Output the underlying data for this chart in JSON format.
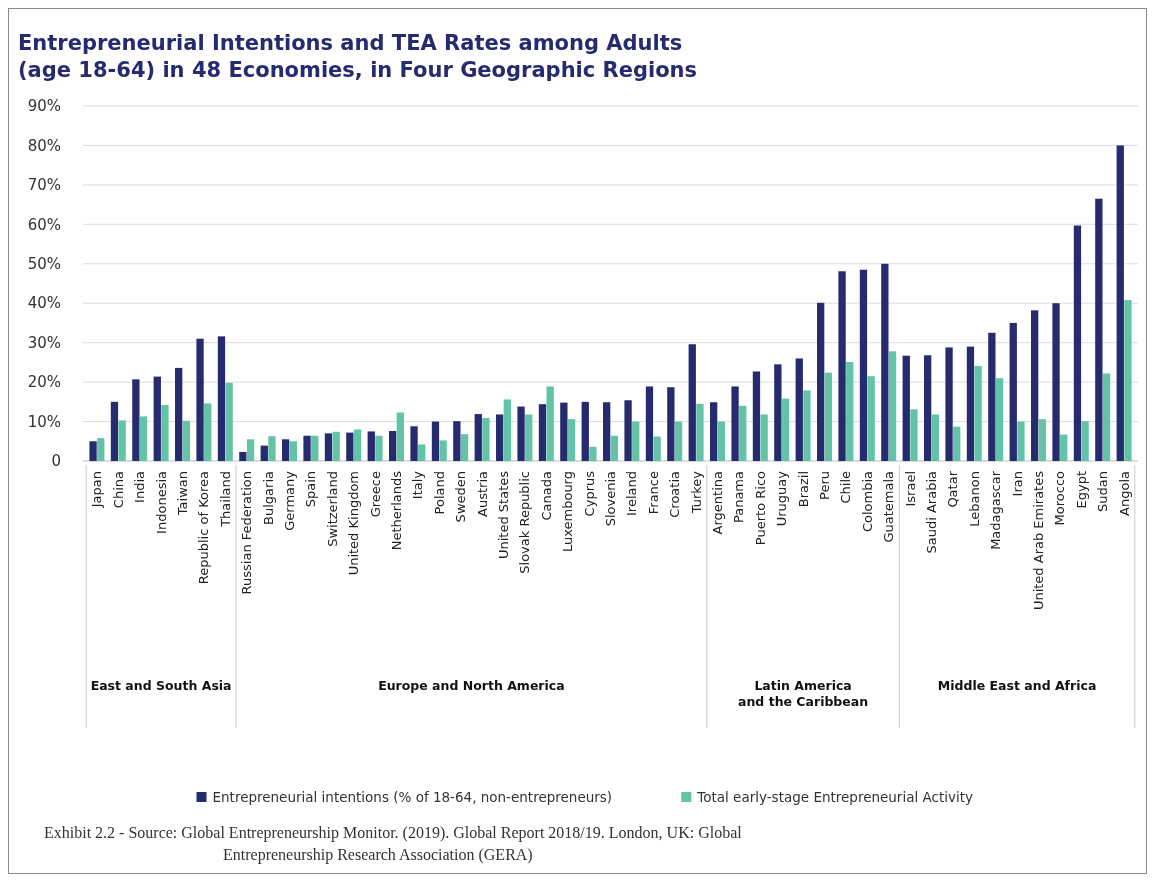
{
  "chart_data": {
    "type": "bar",
    "title": "Entrepreneurial Intentions and TEA Rates among Adults\n(age 18-64) in 48 Economies, in Four Geographic Regions",
    "categories": [
      "Japan",
      "China",
      "India",
      "Indonesia",
      "Taiwan",
      "Republic of Korea",
      "Thailand",
      "Russian Federation",
      "Bulgaria",
      "Germany",
      "Spain",
      "Switzerland",
      "United Kingdom",
      "Greece",
      "Netherlands",
      "Italy",
      "Poland",
      "Sweden",
      "Austria",
      "United States",
      "Slovak Republic",
      "Canada",
      "Luxembourg",
      "Cyprus",
      "Slovenia",
      "Ireland",
      "France",
      "Croatia",
      "Turkey",
      "Argentina",
      "Panama",
      "Puerto Rico",
      "Uruguay",
      "Brazil",
      "Peru",
      "Chile",
      "Colombia",
      "Guatemala",
      "Israel",
      "Saudi Arabia",
      "Qatar",
      "Lebanon",
      "Madagascar",
      "Iran",
      "United Arab Emirates",
      "Morocco",
      "Egypt",
      "Sudan",
      "Angola"
    ],
    "series": [
      {
        "name": "Entrepreneurial intentions (% of 18-64, non-entrepreneurs)",
        "color": "#262a6e",
        "values": [
          5,
          15,
          20.7,
          21.4,
          23.6,
          31,
          31.6,
          2.3,
          3.9,
          5.5,
          6.4,
          7,
          7.2,
          7.5,
          7.6,
          8.8,
          10,
          10.1,
          11.9,
          11.8,
          13.8,
          14.4,
          14.8,
          15,
          14.9,
          15.4,
          18.9,
          18.7,
          29.6,
          14.9,
          18.9,
          22.7,
          24.5,
          26,
          40.1,
          48.1,
          48.5,
          50,
          26.7,
          26.8,
          28.8,
          29,
          32.5,
          35,
          38.2,
          40,
          59.7,
          66.5,
          80
        ]
      },
      {
        "name": "Total early-stage Entrepreneurial Activity",
        "color": "#63c3a6",
        "values": [
          5.8,
          10.3,
          11.3,
          14.2,
          10.2,
          14.6,
          19.8,
          5.5,
          6.3,
          5,
          6.4,
          7.4,
          8,
          6.4,
          12.3,
          4.2,
          5.2,
          6.8,
          10.9,
          15.6,
          11.8,
          18.9,
          10.6,
          3.6,
          6.4,
          10,
          6.2,
          10,
          14.5,
          10,
          14,
          11.8,
          15.8,
          17.9,
          22.4,
          25.1,
          21.5,
          27.8,
          13.1,
          11.8,
          8.7,
          24.1,
          21,
          10,
          10.6,
          6.7,
          10.1,
          22.2,
          40.8
        ]
      }
    ],
    "ylim": [
      0,
      90
    ],
    "yticks": [
      0,
      {
        "value": 10,
        "label": "10%"
      },
      {
        "value": 20,
        "label": "20%"
      },
      {
        "value": 30,
        "label": "30%"
      },
      {
        "value": 40,
        "label": "40%"
      },
      {
        "value": 50,
        "label": "50%"
      },
      {
        "value": 60,
        "label": "60%"
      },
      {
        "value": 70,
        "label": "70%"
      },
      {
        "value": 80,
        "label": "80%"
      },
      {
        "value": 90,
        "label": "90%"
      }
    ],
    "grid": "y",
    "legend": "bottom",
    "annotations": [
      "East and South Asia",
      "Europe and North America",
      "Latin America\nand the Caribbean",
      "Middle East and Africa",
      "Exhibit 2.2 - Source: Global Entrepreneurship Monitor. (2019). Global Report 2018/19. London, UK: Global\nEntrepreneurship Research Association (GERA)"
    ]
  }
}
